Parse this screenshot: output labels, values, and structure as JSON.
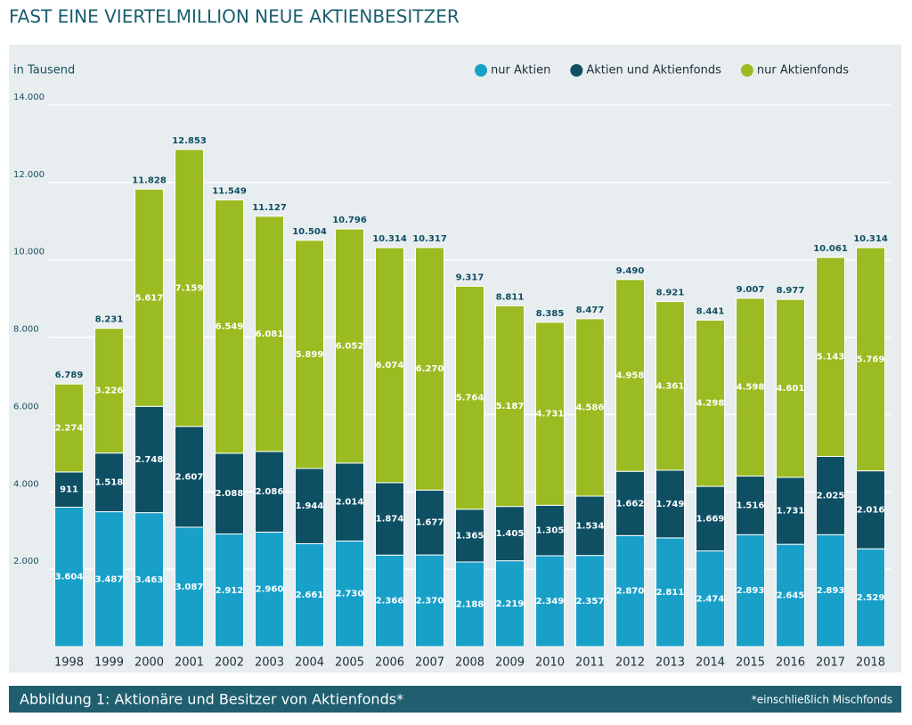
{
  "chart_data": {
    "type": "bar",
    "stacked": true,
    "title": "FAST EINE VIERTELMILLION NEUE AKTIENBESITZER",
    "y_label": "in Tausend",
    "caption": "Abbildung 1: Aktionäre und Besitzer von Aktienfonds*",
    "footnote": "*einschließlich Mischfonds",
    "legend": "top-right",
    "grid": true,
    "categories": [
      "1998",
      "1999",
      "2000",
      "2001",
      "2002",
      "2003",
      "2004",
      "2005",
      "2006",
      "2007",
      "2008",
      "2009",
      "2010",
      "2011",
      "2012",
      "2013",
      "2014",
      "2015",
      "2016",
      "2017",
      "2018"
    ],
    "ylim": [
      0,
      14000
    ],
    "yticks": [
      {
        "value": 2000,
        "label": "2.000"
      },
      {
        "value": 4000,
        "label": "4.000"
      },
      {
        "value": 6000,
        "label": "6.000"
      },
      {
        "value": 8000,
        "label": "8.000"
      },
      {
        "value": 10000,
        "label": "10.000"
      },
      {
        "value": 12000,
        "label": "12.000"
      },
      {
        "value": 14000,
        "label": "14.000"
      }
    ],
    "series": [
      {
        "name": "nur Aktien",
        "color": "#19a0c8",
        "values": [
          3604,
          3487,
          3463,
          3087,
          2912,
          2960,
          2661,
          2730,
          2366,
          2370,
          2188,
          2219,
          2349,
          2357,
          2870,
          2811,
          2474,
          2893,
          2645,
          2893,
          2529
        ],
        "value_labels": [
          "3.604",
          "3.487",
          "3.463",
          "3.087",
          "2.912",
          "2.960",
          "2.661",
          "2.730",
          "2.366",
          "2.370",
          "2.188",
          "2.219",
          "2.349",
          "2.357",
          "2.870",
          "2.811",
          "2.474",
          "2.893",
          "2.645",
          "2.893",
          "2.529"
        ]
      },
      {
        "name": "Aktien und Aktienfonds",
        "color": "#0e4f63",
        "values": [
          911,
          1518,
          2748,
          2607,
          2088,
          2086,
          1944,
          2014,
          1874,
          1677,
          1365,
          1405,
          1305,
          1534,
          1662,
          1749,
          1669,
          1516,
          1731,
          2025,
          2016
        ],
        "value_labels": [
          "911",
          "1.518",
          "2.748",
          "2.607",
          "2.088",
          "2.086",
          "1.944",
          "2.014",
          "1.874",
          "1.677",
          "1.365",
          "1.405",
          "1.305",
          "1.534",
          "1.662",
          "1.749",
          "1.669",
          "1.516",
          "1.731",
          "2.025",
          "2.016"
        ]
      },
      {
        "name": "nur Aktienfonds",
        "color": "#9bbb22",
        "values": [
          2274,
          3226,
          5617,
          7159,
          6549,
          6081,
          5899,
          6052,
          6074,
          6270,
          5764,
          5187,
          4731,
          4586,
          4958,
          4361,
          4298,
          4598,
          4601,
          5143,
          5769
        ],
        "value_labels": [
          "2.274",
          "3.226",
          "5.617",
          "7.159",
          "6.549",
          "6.081",
          "5.899",
          "6.052",
          "6.074",
          "6.270",
          "5.764",
          "5.187",
          "4.731",
          "4.586",
          "4.958",
          "4.361",
          "4.298",
          "4.598",
          "4.601",
          "5.143",
          "5.769"
        ]
      }
    ],
    "totals": {
      "values": [
        6789,
        8231,
        11828,
        12853,
        11549,
        11127,
        10504,
        10796,
        10314,
        10317,
        9317,
        8811,
        8385,
        8477,
        9490,
        8921,
        8441,
        9007,
        8977,
        10061,
        10314
      ],
      "value_labels": [
        "6.789",
        "8.231",
        "11.828",
        "12.853",
        "11.549",
        "11.127",
        "10.504",
        "10.796",
        "10.314",
        "10.317",
        "9.317",
        "8.811",
        "8.385",
        "8.477",
        "9.490",
        "8.921",
        "8.441",
        "9.007",
        "8.977",
        "10.061",
        "10.314"
      ]
    }
  }
}
